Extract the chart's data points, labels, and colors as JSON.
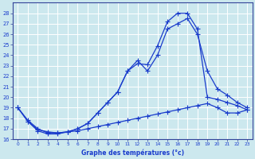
{
  "title": "Graphe des températures (°c)",
  "bg_color": "#cce8ee",
  "grid_color": "#aacccc",
  "line_color": "#1a3ccc",
  "xlim": [
    -0.5,
    23.5
  ],
  "ylim": [
    16,
    29
  ],
  "xticks": [
    0,
    1,
    2,
    3,
    4,
    5,
    6,
    7,
    8,
    9,
    10,
    11,
    12,
    13,
    14,
    15,
    16,
    17,
    18,
    19,
    20,
    21,
    22,
    23
  ],
  "yticks": [
    16,
    17,
    18,
    19,
    20,
    21,
    22,
    23,
    24,
    25,
    26,
    27,
    28
  ],
  "line1_x": [
    0,
    1,
    2,
    3,
    4,
    5,
    6,
    7,
    8,
    9,
    10,
    11,
    12,
    13,
    14,
    15,
    16,
    17,
    18,
    19,
    20,
    21,
    22,
    23
  ],
  "line1_y": [
    19,
    17.7,
    16.8,
    16.5,
    16.5,
    16.7,
    17.0,
    17.5,
    18.5,
    19.5,
    20.5,
    22.5,
    23.2,
    23.1,
    24.9,
    27.2,
    28.0,
    28.0,
    26.5,
    20.0,
    19.8,
    19.5,
    19.2,
    18.8
  ],
  "line2_x": [
    0,
    1,
    2,
    3,
    4,
    5,
    6,
    7,
    8,
    9,
    10,
    11,
    12,
    13,
    14,
    15,
    16,
    17,
    18,
    19,
    20,
    21,
    22,
    23
  ],
  "line2_y": [
    19,
    17.7,
    16.9,
    16.7,
    16.6,
    16.7,
    17.0,
    17.5,
    18.5,
    19.5,
    20.5,
    22.5,
    23.5,
    22.5,
    24.0,
    26.5,
    27.0,
    27.5,
    26.0,
    22.5,
    20.8,
    20.2,
    19.5,
    19.0
  ],
  "line3_x": [
    0,
    1,
    2,
    3,
    4,
    5,
    6,
    7,
    8,
    9,
    10,
    11,
    12,
    13,
    14,
    15,
    16,
    17,
    18,
    19,
    20,
    21,
    22,
    23
  ],
  "line3_y": [
    19,
    17.8,
    17.0,
    16.6,
    16.6,
    16.7,
    16.8,
    17.0,
    17.2,
    17.4,
    17.6,
    17.8,
    18.0,
    18.2,
    18.4,
    18.6,
    18.8,
    19.0,
    19.2,
    19.4,
    19.0,
    18.5,
    18.5,
    18.8
  ]
}
